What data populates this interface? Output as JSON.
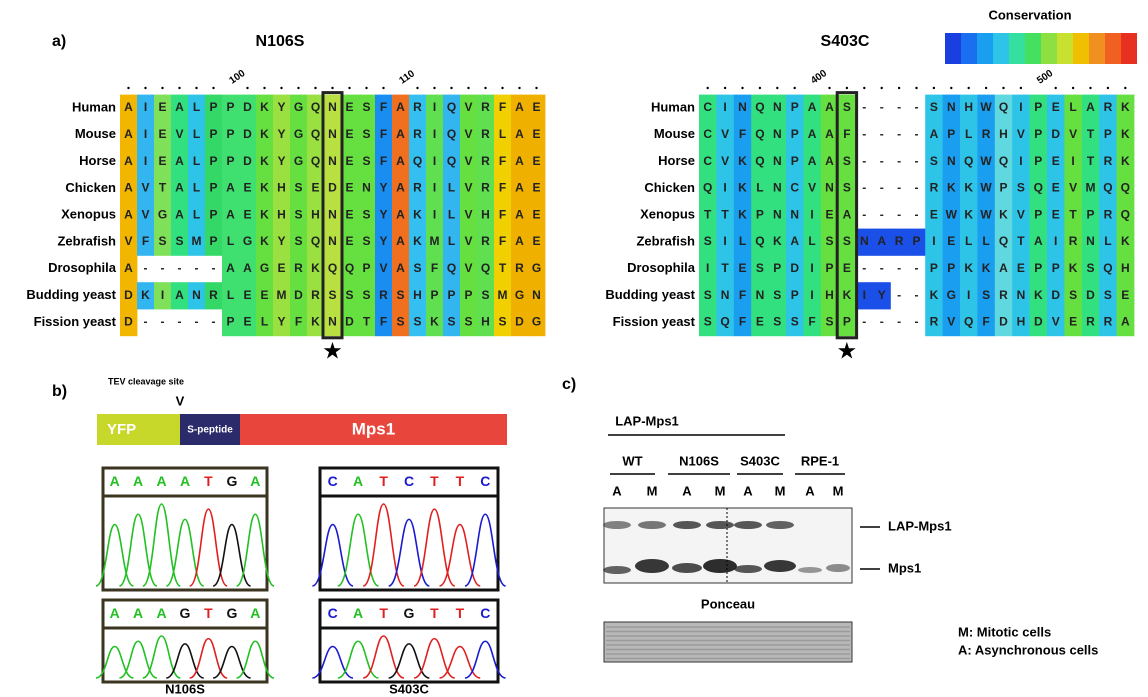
{
  "panel_a": {
    "label": "a)",
    "legend_title": "Conservation",
    "marker": "★",
    "left": {
      "title": "N106S",
      "position_ticks": [
        "100",
        "110"
      ],
      "rows": [
        {
          "species": "Human",
          "sequence": "AIEALPPDKYGQNESFARIQVRFAE"
        },
        {
          "species": "Mouse",
          "sequence": "AIEVLPPDKYGQNESFARIQVRLAE"
        },
        {
          "species": "Horse",
          "sequence": "AIEALPPDKYGQNESFAQIQVRFAE"
        },
        {
          "species": "Chicken",
          "sequence": "AVTALPAEKHSEDENYARILVRFAE"
        },
        {
          "species": "Xenopus",
          "sequence": "AVGALPAEKHSHNESYAKILVHFAE"
        },
        {
          "species": "Zebrafish",
          "sequence": "VFSSMPLGKYSQNESYAKMLVRFAE"
        },
        {
          "species": "Drosophila",
          "sequence": "A-----AAGERKQQPVASFQVQTRG"
        },
        {
          "species": "Budding yeast",
          "sequence": "DKIANRLEEMDRSSSRSHPPPSMGN"
        },
        {
          "species": "Fission yeast",
          "sequence": "D-----PELYFKNDTFSSKSSHSDG"
        }
      ]
    },
    "right": {
      "title": "S403C",
      "position_ticks": [
        "400",
        "500"
      ],
      "rows": [
        {
          "species": "Human",
          "sequence": "CINQNPAAS----SNHWQIPELARK"
        },
        {
          "species": "Mouse",
          "sequence": "CVFQNPAAF----APLRHVPDVTPK"
        },
        {
          "species": "Horse",
          "sequence": "CVKQNPAAS----SNQWQIPEITRK"
        },
        {
          "species": "Chicken",
          "sequence": "QIKLNCVNS----RKKWPSQEVMQQ"
        },
        {
          "species": "Xenopus",
          "sequence": "TTKPNNIEA----EWKWKVPETPRQ"
        },
        {
          "species": "Zebrafish",
          "sequence": "SILQKALSSNARPIELLQTAIRNLK"
        },
        {
          "species": "Drosophila",
          "sequence": "ITESPDIPE----PPKKAEPPKSQH"
        },
        {
          "species": "Budding yeast",
          "sequence": "SNFNSPIHKIY--KGISRNKDSDSE"
        },
        {
          "species": "Fission yeast",
          "sequence": "SQFESSFSP----RVQFDHDVERRA"
        }
      ]
    }
  },
  "panel_b": {
    "label": "b)",
    "site_label": "TEV cleavage site",
    "site_mark": "V",
    "construct": [
      "YFP",
      "S-peptide",
      "Mps1"
    ],
    "traces": [
      {
        "name": "N106S",
        "top": "AAAATGA",
        "bottom": "AAAGTGA"
      },
      {
        "name": "S403C",
        "top": "CATCTTC",
        "bottom": "CATGTTC"
      }
    ]
  },
  "panel_c": {
    "label": "c)",
    "group_header": "LAP-Mps1",
    "groups": [
      "WT",
      "N106S",
      "S403C",
      "RPE-1"
    ],
    "lanes": [
      "A",
      "M",
      "A",
      "M",
      "A",
      "M",
      "A",
      "M"
    ],
    "bands": [
      "LAP-Mps1",
      "Mps1"
    ],
    "loading_label": "Ponceau",
    "legend": [
      "M: Mitotic cells",
      "A: Asynchronous cells"
    ]
  }
}
